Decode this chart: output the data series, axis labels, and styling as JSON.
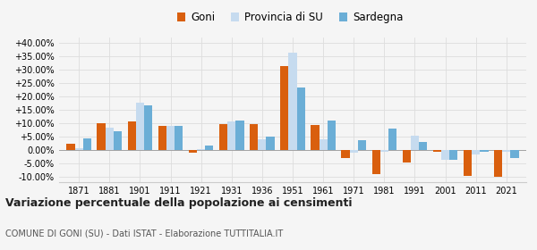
{
  "years": [
    1871,
    1881,
    1901,
    1911,
    1921,
    1931,
    1936,
    1951,
    1961,
    1971,
    1981,
    1991,
    2001,
    2011,
    2021
  ],
  "goni": [
    2.5,
    10.2,
    10.8,
    9.0,
    -1.0,
    9.7,
    9.8,
    31.5,
    9.4,
    -3.0,
    -9.0,
    -4.5,
    -0.5,
    -9.5,
    -10.0
  ],
  "provincia": [
    0.8,
    8.5,
    17.8,
    9.0,
    0.5,
    10.8,
    4.0,
    36.5,
    4.2,
    -1.0,
    -0.5,
    5.5,
    -3.5,
    -1.5,
    -0.5
  ],
  "sardegna": [
    4.5,
    7.0,
    16.8,
    9.2,
    1.8,
    11.2,
    5.0,
    23.5,
    11.2,
    3.8,
    8.2,
    3.0,
    -3.5,
    -0.5,
    -3.0
  ],
  "color_goni": "#d95f0e",
  "color_provincia": "#c6dbef",
  "color_sardegna": "#6baed6",
  "title": "Variazione percentuale della popolazione ai censimenti",
  "subtitle": "COMUNE DI GONI (SU) - Dati ISTAT - Elaborazione TUTTITALIA.IT",
  "legend_labels": [
    "Goni",
    "Provincia di SU",
    "Sardegna"
  ],
  "ylim": [
    -12,
    42
  ],
  "yticks": [
    -10,
    -5,
    0,
    5,
    10,
    15,
    20,
    25,
    30,
    35,
    40
  ],
  "background_color": "#f5f5f5",
  "grid_color": "#dddddd"
}
